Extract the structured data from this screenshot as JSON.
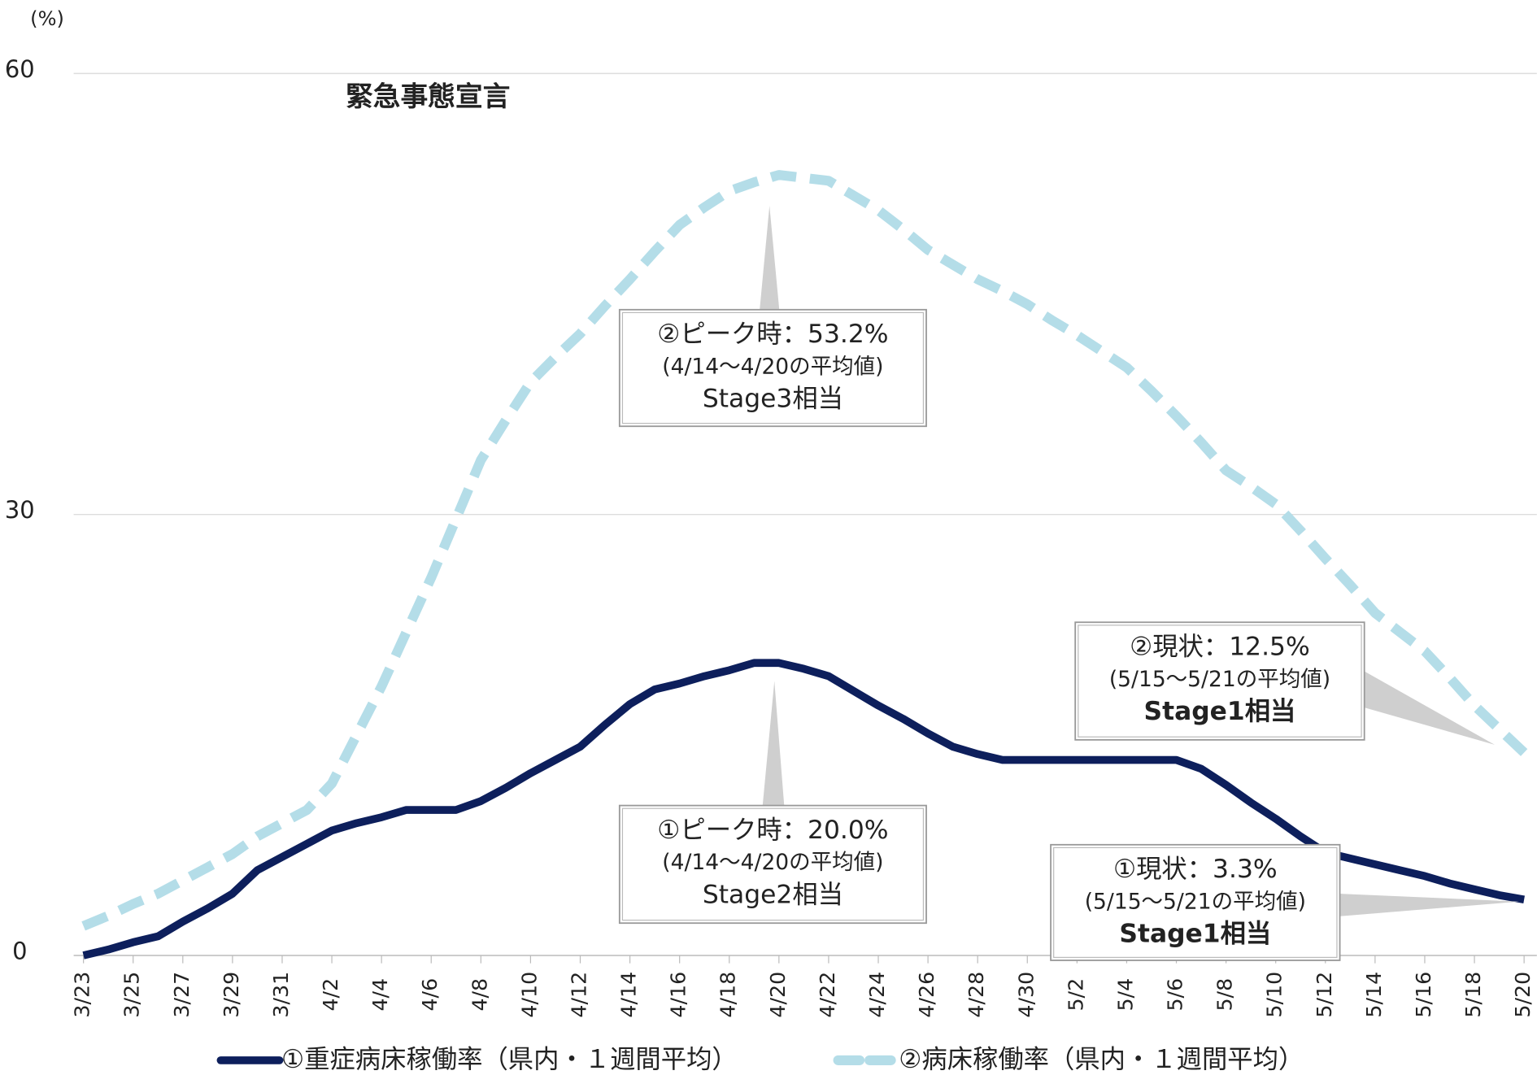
{
  "chart_data": {
    "type": "line",
    "y_unit": "(%)",
    "categories": [
      "3/23",
      null,
      "3/25",
      null,
      "3/27",
      null,
      "3/29",
      null,
      "3/31",
      null,
      "4/2",
      null,
      "4/4",
      null,
      "4/6",
      null,
      "4/8",
      null,
      "4/10",
      null,
      "4/12",
      null,
      "4/14",
      null,
      "4/16",
      null,
      "4/18",
      null,
      "4/20",
      null,
      "4/22",
      null,
      "4/24",
      null,
      "4/26",
      null,
      "4/28",
      null,
      "4/30",
      null,
      "5/2",
      null,
      "5/4",
      null,
      "5/6",
      null,
      "5/8",
      null,
      "5/10",
      null,
      "5/12",
      null,
      "5/14",
      null,
      "5/16",
      null,
      "5/18",
      null,
      "5/20"
    ],
    "series": [
      {
        "name": "①重症病床稼働率（県内・１週間平均）",
        "color": "#0d1f5c",
        "dashed": false,
        "values": [
          0,
          0.4,
          0.9,
          1.3,
          2.3,
          3.2,
          4.2,
          5.8,
          6.7,
          7.6,
          8.5,
          9.0,
          9.4,
          9.9,
          9.9,
          9.9,
          10.5,
          11.4,
          12.4,
          13.3,
          14.2,
          15.7,
          17.1,
          18.1,
          18.5,
          19.0,
          19.4,
          19.9,
          19.9,
          19.5,
          19.0,
          18.0,
          17.0,
          16.1,
          15.1,
          14.2,
          13.7,
          13.3,
          13.3,
          13.3,
          13.3,
          13.3,
          13.3,
          13.3,
          13.3,
          12.7,
          11.6,
          10.4,
          9.3,
          8.1,
          7.0,
          6.6,
          6.2,
          5.8,
          5.4,
          4.9,
          4.5,
          4.1,
          3.8
        ]
      },
      {
        "name": "②病床稼働率（県内・１週間平均）",
        "color": "#b4dde8",
        "dashed": true,
        "values": [
          2.0,
          2.7,
          3.5,
          4.2,
          5.1,
          6.0,
          6.9,
          8.1,
          9.0,
          9.9,
          11.7,
          15.0,
          18.3,
          22.0,
          25.7,
          29.7,
          33.7,
          36.4,
          39.0,
          40.7,
          42.3,
          44.2,
          46.0,
          47.9,
          49.7,
          50.9,
          52.0,
          52.6,
          53.1,
          52.9,
          52.7,
          51.7,
          50.7,
          49.4,
          48.0,
          47.0,
          46.0,
          45.2,
          44.3,
          43.2,
          42.2,
          41.1,
          40.0,
          38.4,
          36.7,
          34.9,
          33.0,
          31.9,
          30.7,
          28.9,
          27.0,
          25.2,
          23.3,
          22.0,
          20.7,
          18.9,
          17.0,
          15.4,
          13.8
        ]
      }
    ],
    "ylim": [
      0,
      60
    ],
    "yticks": [
      0,
      30,
      60
    ],
    "grid": true,
    "band": {
      "label": "緊急事態宣言",
      "start": "4/16",
      "end": "5/13",
      "color": "#fdf0f0",
      "label_color": "#0d1f5c"
    },
    "annotations": [
      {
        "lines": [
          "②ピーク時：53.2%",
          "(4/14～4/20の平均値)",
          "Stage3相当"
        ],
        "highlight": false
      },
      {
        "lines": [
          "①ピーク時：20.0%",
          "(4/14～4/20の平均値)",
          "Stage2相当"
        ],
        "highlight": false
      },
      {
        "lines": [
          "②現状：12.5%",
          "(5/15～5/21の平均値)",
          "Stage1相当"
        ],
        "highlight": true
      },
      {
        "lines": [
          "①現状：3.3%",
          "(5/15～5/21の平均値)",
          "Stage1相当"
        ],
        "highlight": true
      }
    ],
    "highlight_color": "#e8101a"
  }
}
